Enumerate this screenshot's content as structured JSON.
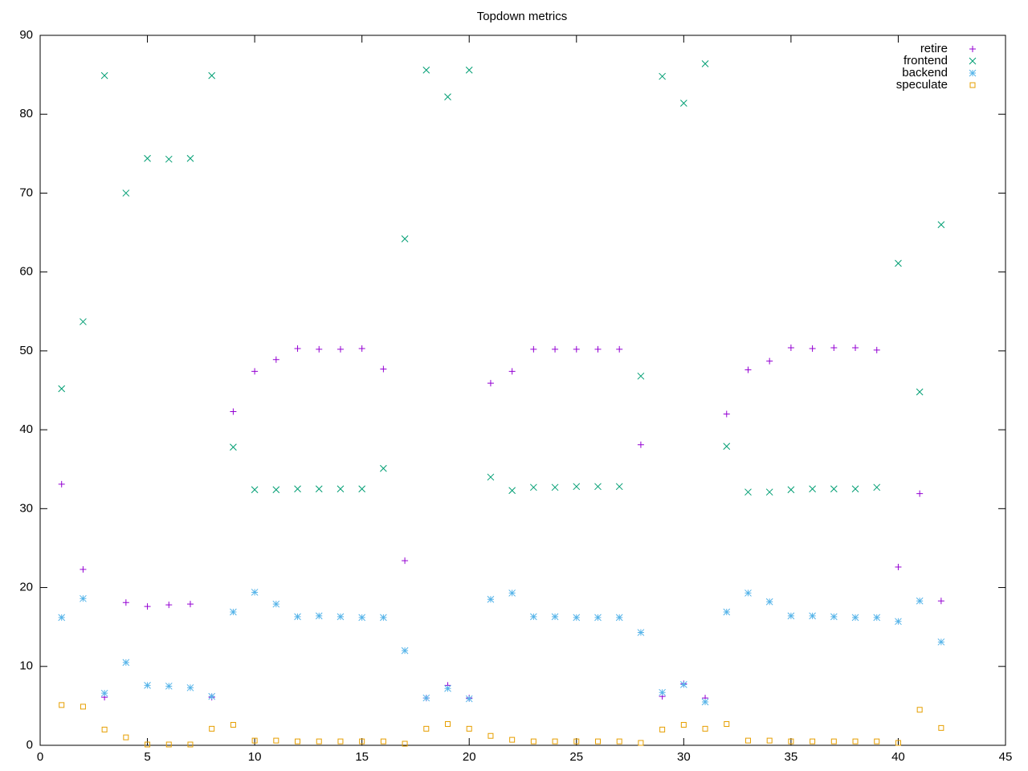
{
  "chart_data": {
    "type": "scatter",
    "title": "Topdown metrics",
    "x": [
      1,
      2,
      3,
      4,
      5,
      6,
      7,
      8,
      9,
      10,
      11,
      12,
      13,
      14,
      15,
      16,
      17,
      18,
      19,
      20,
      21,
      22,
      23,
      24,
      25,
      26,
      27,
      28,
      29,
      30,
      31,
      32,
      33,
      34,
      35,
      36,
      37,
      38,
      39,
      40,
      41,
      42
    ],
    "series": [
      {
        "name": "retire",
        "color": "#9400d3",
        "marker": "plus",
        "values": [
          33.1,
          22.3,
          6.1,
          18.1,
          17.6,
          17.8,
          17.9,
          6.1,
          42.3,
          47.4,
          48.9,
          50.3,
          50.2,
          50.2,
          50.3,
          47.7,
          23.4,
          6.0,
          7.6,
          6.0,
          45.9,
          47.4,
          50.2,
          50.2,
          50.2,
          50.2,
          50.2,
          38.1,
          6.2,
          7.8,
          6.0,
          42.0,
          47.6,
          48.7,
          50.4,
          50.3,
          50.4,
          50.4,
          50.1,
          22.6,
          31.9,
          18.3
        ]
      },
      {
        "name": "frontend",
        "color": "#009e73",
        "marker": "cross",
        "values": [
          45.2,
          53.7,
          84.9,
          70.0,
          74.4,
          74.3,
          74.4,
          84.9,
          37.8,
          32.4,
          32.4,
          32.5,
          32.5,
          32.5,
          32.5,
          35.1,
          64.2,
          85.6,
          82.2,
          85.6,
          34.0,
          32.3,
          32.7,
          32.7,
          32.8,
          32.8,
          32.8,
          46.8,
          84.8,
          81.4,
          86.4,
          37.9,
          32.1,
          32.1,
          32.4,
          32.5,
          32.5,
          32.5,
          32.7,
          61.1,
          44.8,
          66.0
        ]
      },
      {
        "name": "backend",
        "color": "#56b4e9",
        "marker": "star",
        "values": [
          16.2,
          18.6,
          6.6,
          10.5,
          7.6,
          7.5,
          7.3,
          6.2,
          16.9,
          19.4,
          17.9,
          16.3,
          16.4,
          16.3,
          16.2,
          16.2,
          12.0,
          6.0,
          7.2,
          5.9,
          18.5,
          19.3,
          16.3,
          16.3,
          16.2,
          16.2,
          16.2,
          14.3,
          6.7,
          7.7,
          5.5,
          16.9,
          19.3,
          18.2,
          16.4,
          16.4,
          16.3,
          16.2,
          16.2,
          15.7,
          18.3,
          13.1
        ]
      },
      {
        "name": "speculate",
        "color": "#e69f00",
        "marker": "square",
        "values": [
          5.1,
          4.9,
          2.0,
          1.0,
          0.1,
          0.1,
          0.1,
          2.1,
          2.6,
          0.6,
          0.6,
          0.5,
          0.5,
          0.5,
          0.5,
          0.5,
          0.2,
          2.1,
          2.7,
          2.1,
          1.2,
          0.7,
          0.5,
          0.5,
          0.5,
          0.5,
          0.5,
          0.3,
          2.0,
          2.6,
          2.1,
          2.7,
          0.6,
          0.6,
          0.5,
          0.5,
          0.5,
          0.5,
          0.5,
          0.3,
          4.5,
          2.2
        ]
      }
    ],
    "xlim": [
      0,
      45
    ],
    "xticks": [
      0,
      5,
      10,
      15,
      20,
      25,
      30,
      35,
      40,
      45
    ],
    "ylim": [
      0,
      90
    ],
    "yticks": [
      0,
      10,
      20,
      30,
      40,
      50,
      60,
      70,
      80,
      90
    ],
    "legend": "top-right"
  }
}
